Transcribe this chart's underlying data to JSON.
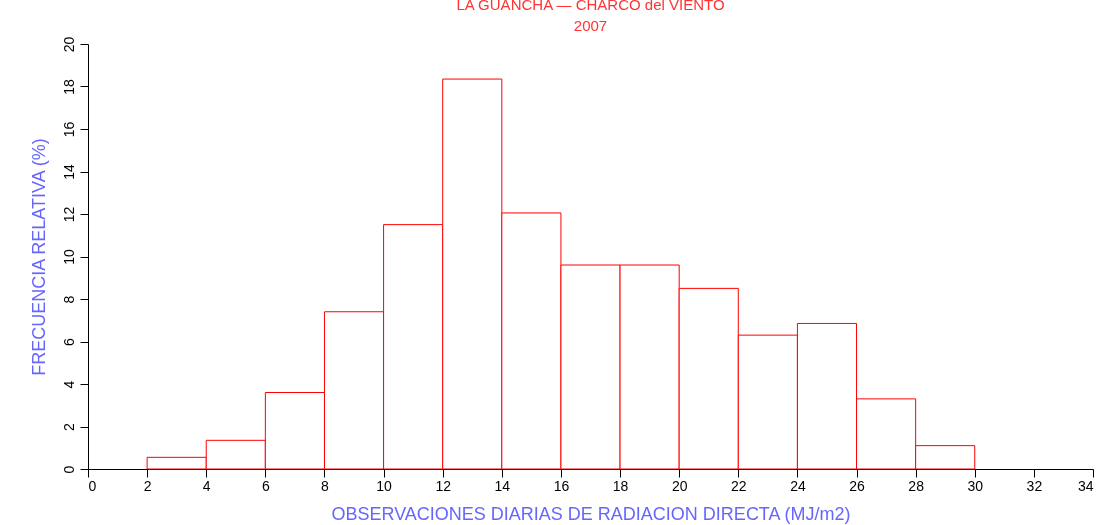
{
  "chart_data": {
    "type": "histogram",
    "title": "LA GUANCHA — CHARCO del VIENTO",
    "subtitle": "2007",
    "xlabel": "OBSERVACIONES DIARIAS DE RADIACION DIRECTA (MJ/m2)",
    "ylabel": "FRECUENCIA RELATIVA (%)",
    "bins": [
      2,
      4,
      6,
      8,
      10,
      12,
      14,
      16,
      18,
      20,
      22,
      24,
      26,
      28,
      30
    ],
    "values": [
      0.55,
      1.35,
      3.6,
      7.4,
      11.5,
      18.35,
      12.05,
      9.6,
      9.6,
      8.5,
      6.3,
      6.85,
      3.3,
      1.1
    ],
    "color": "#ff0000",
    "xlim": [
      0,
      34
    ],
    "xticks": [
      0,
      2,
      4,
      6,
      8,
      10,
      12,
      14,
      16,
      18,
      20,
      22,
      24,
      26,
      28,
      30,
      32,
      34
    ],
    "ylim": [
      0,
      20
    ],
    "yticks": [
      0,
      2,
      4,
      6,
      8,
      10,
      12,
      14,
      16,
      18,
      20
    ],
    "grid": false
  }
}
